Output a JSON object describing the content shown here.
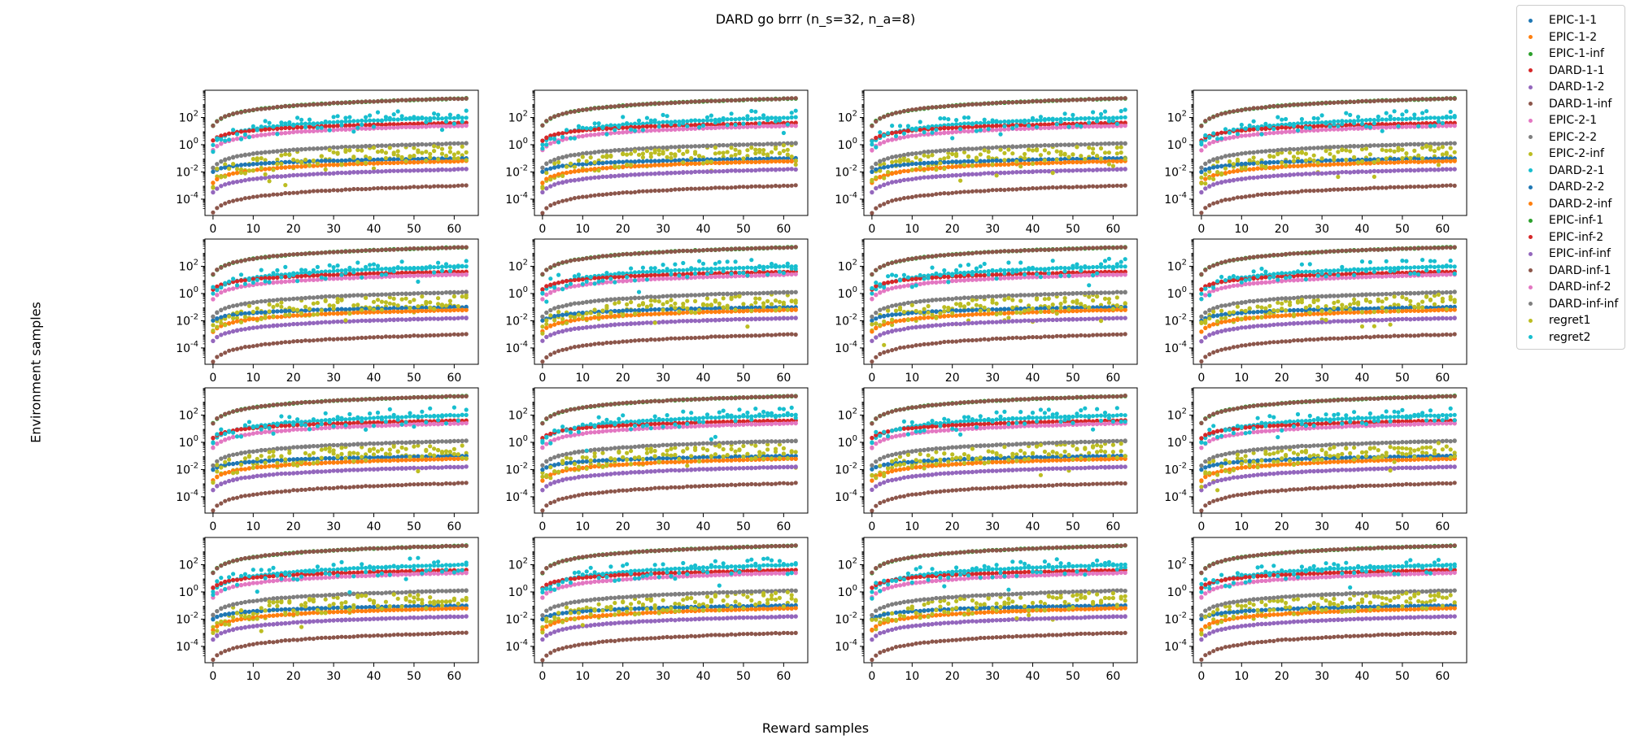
{
  "chart_data": {
    "type": "scatter",
    "title": "DARD go brrr (n_s=32, n_a=8)",
    "xlabel": "Reward samples",
    "ylabel": "Environment samples",
    "grid": false,
    "legend_placement": "upper-right-outside",
    "layout": {
      "rows": 4,
      "cols": 4
    },
    "xlim": [
      -2,
      66
    ],
    "ylim_log10": [
      -5.2,
      4.0
    ],
    "yscale": "log",
    "x_ticks": [
      "0",
      "10",
      "20",
      "30",
      "40",
      "50",
      "60"
    ],
    "y_ticks": [
      {
        "base": "10",
        "exp": "2"
      },
      {
        "base": "10",
        "exp": "0"
      },
      {
        "base": "10",
        "exp": "-2"
      },
      {
        "base": "10",
        "exp": "-4"
      }
    ],
    "x": [
      0,
      1,
      2,
      3,
      4,
      5,
      6,
      7,
      8,
      9,
      10,
      11,
      12,
      13,
      14,
      15,
      16,
      17,
      18,
      19,
      20,
      21,
      22,
      23,
      24,
      25,
      26,
      27,
      28,
      29,
      30,
      31,
      32,
      33,
      34,
      35,
      36,
      37,
      38,
      39,
      40,
      41,
      42,
      43,
      44,
      45,
      46,
      47,
      48,
      49,
      50,
      51,
      52,
      53,
      54,
      55,
      56,
      57,
      58,
      59,
      60,
      61,
      62,
      63
    ],
    "series": [
      {
        "name": "EPIC-1-1",
        "color": "#1f77b4",
        "trend": {
          "y0_log10": -2.0,
          "y63_log10": -1.0
        }
      },
      {
        "name": "EPIC-1-2",
        "color": "#ff7f0e",
        "trend": {
          "y0_log10": -2.8,
          "y63_log10": -1.2
        }
      },
      {
        "name": "EPIC-1-inf",
        "color": "#2ca02c",
        "trend": {
          "y0_log10": 1.4,
          "y63_log10": 3.4
        }
      },
      {
        "name": "DARD-1-1",
        "color": "#d62728",
        "trend": {
          "y0_log10": 0.3,
          "y63_log10": 1.6
        }
      },
      {
        "name": "DARD-1-2",
        "color": "#9467bd",
        "trend": {
          "y0_log10": -3.5,
          "y63_log10": -1.8
        }
      },
      {
        "name": "DARD-1-inf",
        "color": "#8c564b",
        "trend": {
          "y0_log10": -5.0,
          "y63_log10": -3.0
        }
      },
      {
        "name": "EPIC-2-1",
        "color": "#e377c2",
        "trend": {
          "y0_log10": -0.4,
          "y63_log10": 1.4
        }
      },
      {
        "name": "EPIC-2-2",
        "color": "#7f7f7f",
        "trend": {
          "y0_log10": -1.7,
          "y63_log10": 0.1
        }
      },
      {
        "name": "EPIC-2-inf",
        "color": "#bcbd22",
        "trend": {
          "y0_log10": -2.6,
          "y63_log10": -0.6
        }
      },
      {
        "name": "DARD-2-1",
        "color": "#17becf",
        "trend": {
          "y0_log10": 0.0,
          "y63_log10": 2.0
        }
      },
      {
        "name": "DARD-2-2",
        "color": "#1f77b4",
        "trend": {
          "y0_log10": -2.0,
          "y63_log10": -1.0
        }
      },
      {
        "name": "DARD-2-inf",
        "color": "#ff7f0e",
        "trend": {
          "y0_log10": -2.8,
          "y63_log10": -1.2
        }
      },
      {
        "name": "EPIC-inf-1",
        "color": "#2ca02c",
        "trend": {
          "y0_log10": 1.4,
          "y63_log10": 3.4
        }
      },
      {
        "name": "EPIC-inf-2",
        "color": "#d62728",
        "trend": {
          "y0_log10": 0.3,
          "y63_log10": 1.6
        }
      },
      {
        "name": "EPIC-inf-inf",
        "color": "#9467bd",
        "trend": {
          "y0_log10": -3.5,
          "y63_log10": -1.8
        }
      },
      {
        "name": "DARD-inf-1",
        "color": "#8c564b",
        "trend": {
          "y0_log10": 1.4,
          "y63_log10": 3.4
        }
      },
      {
        "name": "DARD-inf-2",
        "color": "#e377c2",
        "trend": {
          "y0_log10": -0.4,
          "y63_log10": 1.4
        }
      },
      {
        "name": "DARD-inf-inf",
        "color": "#7f7f7f",
        "trend": {
          "y0_log10": -1.7,
          "y63_log10": 0.1
        }
      },
      {
        "name": "regret1",
        "color": "#bcbd22",
        "trend": {
          "y0_log10": -2.6,
          "y63_log10": -0.6
        }
      },
      {
        "name": "regret2",
        "color": "#17becf",
        "trend": {
          "y0_log10": 0.0,
          "y63_log10": 2.0
        }
      }
    ]
  }
}
